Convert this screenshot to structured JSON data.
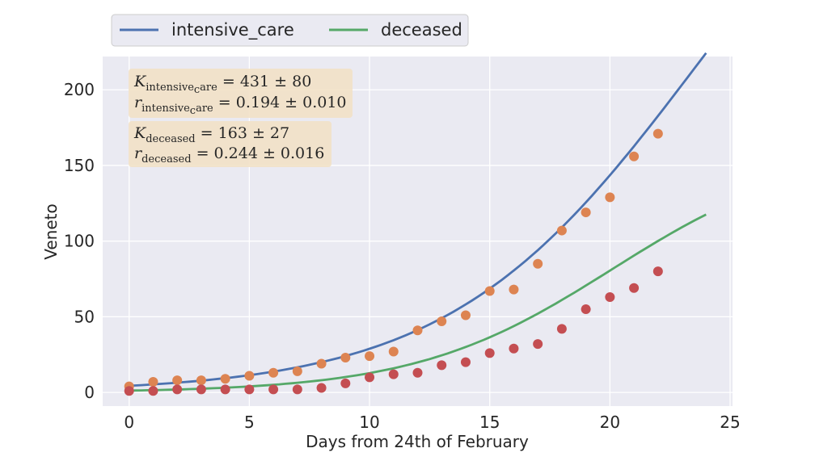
{
  "chart_data": {
    "type": "line",
    "xlabel": "Days from 24th of February",
    "ylabel": "Veneto",
    "xlim": [
      -1.1,
      25.1
    ],
    "ylim": [
      -9,
      222
    ],
    "xticks": [
      0,
      5,
      10,
      15,
      20,
      25
    ],
    "yticks": [
      0,
      50,
      100,
      150,
      200
    ],
    "grid": true,
    "legend_placement": "top-left, outside above plot",
    "series": [
      {
        "name": "intensive_care",
        "color": "#4C72B0",
        "marker_color": "#DD8452",
        "fit": {
          "K": 431,
          "r": 0.194
        },
        "points": [
          [
            0,
            4
          ],
          [
            1,
            7
          ],
          [
            2,
            8
          ],
          [
            3,
            8
          ],
          [
            4,
            9
          ],
          [
            5,
            11
          ],
          [
            6,
            13
          ],
          [
            7,
            14
          ],
          [
            8,
            19
          ],
          [
            9,
            23
          ],
          [
            10,
            24
          ],
          [
            11,
            27
          ],
          [
            12,
            41
          ],
          [
            13,
            47
          ],
          [
            14,
            51
          ],
          [
            15,
            67
          ],
          [
            16,
            68
          ],
          [
            17,
            85
          ],
          [
            18,
            107
          ],
          [
            19,
            119
          ],
          [
            20,
            129
          ],
          [
            21,
            156
          ],
          [
            22,
            171
          ]
        ]
      },
      {
        "name": "deceased",
        "color": "#55A868",
        "marker_color": "#C44E52",
        "fit": {
          "K": 163,
          "r": 0.244
        },
        "points": [
          [
            0,
            1
          ],
          [
            1,
            1
          ],
          [
            2,
            2
          ],
          [
            3,
            2
          ],
          [
            4,
            2
          ],
          [
            5,
            2
          ],
          [
            6,
            2
          ],
          [
            7,
            2
          ],
          [
            8,
            3
          ],
          [
            9,
            6
          ],
          [
            10,
            10
          ],
          [
            11,
            12
          ],
          [
            12,
            13
          ],
          [
            13,
            18
          ],
          [
            14,
            20
          ],
          [
            15,
            26
          ],
          [
            16,
            29
          ],
          [
            17,
            32
          ],
          [
            18,
            42
          ],
          [
            19,
            55
          ],
          [
            20,
            63
          ],
          [
            21,
            69
          ],
          [
            22,
            80
          ]
        ]
      }
    ],
    "annotations": [
      {
        "lines": [
          {
            "main": "K",
            "sub": "intensive",
            "sub2": "c",
            "sub3": "are",
            "rest": " = 431 ± 80"
          },
          {
            "main": "r",
            "sub": "intensive",
            "sub2": "c",
            "sub3": "are",
            "rest": " = 0.194 ± 0.010"
          }
        ]
      },
      {
        "lines": [
          {
            "main": "K",
            "sub": "deceased",
            "sub2": "",
            "sub3": "",
            "rest": " = 163 ± 27"
          },
          {
            "main": "r",
            "sub": "deceased",
            "sub2": "",
            "sub3": "",
            "rest": " = 0.244 ± 0.016"
          }
        ]
      }
    ]
  },
  "colors": {
    "plot_background": "#EAEAF2",
    "grid": "#FFFFFF",
    "annotation_box": "#F2E1C6",
    "legend_background": "#EAEAF2"
  }
}
